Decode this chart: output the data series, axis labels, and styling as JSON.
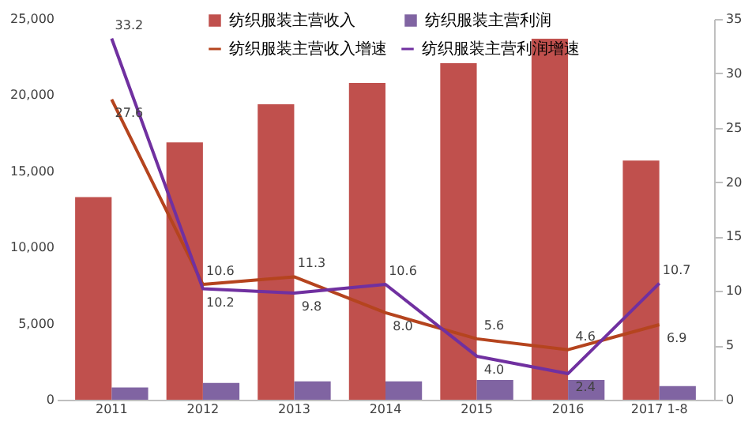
{
  "chart_data": {
    "type": "bar",
    "categories": [
      "2011",
      "2012",
      "2013",
      "2014",
      "2015",
      "2016",
      "2017 1-8"
    ],
    "series": [
      {
        "name": "纺织服装主营收入",
        "color": "#c0504d",
        "values": [
          13300,
          16900,
          19400,
          20800,
          22100,
          23700,
          15700
        ]
      },
      {
        "name": "纺织服装主营利润",
        "color": "#8064a2",
        "values": [
          800,
          1100,
          1200,
          1200,
          1300,
          1300,
          900
        ]
      },
      {
        "name": "纺织服装主营收入增速",
        "type": "line",
        "axis": "y2",
        "color": "#b5441e",
        "values": [
          27.6,
          10.6,
          11.3,
          8.0,
          5.6,
          4.6,
          6.9
        ],
        "value_labels": [
          "27.6",
          "10.6",
          "11.3",
          "8.0",
          "5.6",
          "4.6",
          "6.9"
        ]
      },
      {
        "name": "纺织服装主营利润增速",
        "type": "line",
        "axis": "y2",
        "color": "#7030a0",
        "values": [
          33.2,
          10.2,
          9.8,
          10.6,
          4.0,
          2.4,
          10.7
        ],
        "value_labels": [
          "33.2",
          "10.2",
          "9.8",
          "10.6",
          "4.0",
          "2.4",
          "10.7"
        ]
      }
    ],
    "ylim": [
      0,
      25000
    ],
    "yticks": [
      0,
      {
        "value": 5000,
        "label": "5,000"
      },
      {
        "value": 10000,
        "label": "10,000"
      },
      {
        "value": 15000,
        "label": "15,000"
      },
      {
        "value": 20000,
        "label": "20,000"
      },
      {
        "value": 25000,
        "label": "25,000"
      }
    ],
    "y2lim": [
      0,
      35
    ],
    "y2ticks": [
      0,
      5,
      10,
      15,
      20,
      25,
      30,
      35
    ],
    "legend": "top",
    "grid": false,
    "marker": "none",
    "line_style": "solid"
  }
}
